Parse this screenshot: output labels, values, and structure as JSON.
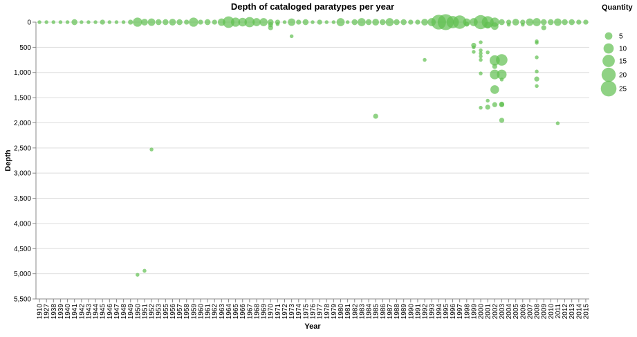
{
  "chart_data": {
    "type": "scatter",
    "title": "Depth of cataloged paratypes per year",
    "xlabel": "Year",
    "ylabel": "Depth",
    "categories": [
      "1910",
      "1927",
      "1938",
      "1939",
      "1940",
      "1941",
      "1942",
      "1943",
      "1944",
      "1945",
      "1946",
      "1947",
      "1948",
      "1949",
      "1950",
      "1951",
      "1952",
      "1953",
      "1955",
      "1956",
      "1957",
      "1958",
      "1959",
      "1960",
      "1961",
      "1962",
      "1963",
      "1964",
      "1965",
      "1966",
      "1967",
      "1968",
      "1969",
      "1970",
      "1971",
      "1972",
      "1973",
      "1974",
      "1975",
      "1976",
      "1977",
      "1978",
      "1979",
      "1980",
      "1981",
      "1982",
      "1983",
      "1984",
      "1985",
      "1986",
      "1987",
      "1988",
      "1989",
      "1990",
      "1991",
      "1992",
      "1993",
      "1994",
      "1995",
      "1996",
      "1997",
      "1998",
      "1999",
      "2000",
      "2001",
      "2002",
      "2003",
      "2004",
      "2005",
      "2006",
      "2007",
      "2008",
      "2009",
      "2010",
      "2011",
      "2012",
      "2013",
      "2014",
      "2015"
    ],
    "y_ticks": [
      0,
      500,
      1000,
      1500,
      2000,
      2500,
      3000,
      3500,
      4000,
      4500,
      5000,
      5500
    ],
    "y_tick_labels": [
      "0",
      "500",
      "1,000",
      "1,500",
      "2,000",
      "2,500",
      "3,000",
      "3,500",
      "4,000",
      "4,500",
      "5,000",
      "5,500"
    ],
    "ylim": [
      0,
      5500
    ],
    "y_reversed": true,
    "grid": true,
    "color": "#5fbf50",
    "legend": {
      "title": "Quantity",
      "placement": "right",
      "sizes": [
        5,
        10,
        15,
        20,
        25
      ],
      "labels": [
        "5",
        "10",
        "15",
        "20",
        "25"
      ]
    },
    "points": [
      {
        "x": "1910",
        "y": 0,
        "q": 1
      },
      {
        "x": "1927",
        "y": 0,
        "q": 1
      },
      {
        "x": "1938",
        "y": 0,
        "q": 1
      },
      {
        "x": "1939",
        "y": 0,
        "q": 1
      },
      {
        "x": "1940",
        "y": 0,
        "q": 1
      },
      {
        "x": "1941",
        "y": 0,
        "q": 3
      },
      {
        "x": "1942",
        "y": 0,
        "q": 1
      },
      {
        "x": "1943",
        "y": 0,
        "q": 1
      },
      {
        "x": "1944",
        "y": 0,
        "q": 1
      },
      {
        "x": "1945",
        "y": 0,
        "q": 2
      },
      {
        "x": "1946",
        "y": 0,
        "q": 1
      },
      {
        "x": "1947",
        "y": 0,
        "q": 1
      },
      {
        "x": "1948",
        "y": 0,
        "q": 1
      },
      {
        "x": "1949",
        "y": 0,
        "q": 2
      },
      {
        "x": "1950",
        "y": 0,
        "q": 8
      },
      {
        "x": "1950",
        "y": 5020,
        "q": 1
      },
      {
        "x": "1951",
        "y": 0,
        "q": 4
      },
      {
        "x": "1951",
        "y": 4940,
        "q": 1
      },
      {
        "x": "1952",
        "y": 0,
        "q": 5
      },
      {
        "x": "1952",
        "y": 2530,
        "q": 1
      },
      {
        "x": "1953",
        "y": 0,
        "q": 3
      },
      {
        "x": "1955",
        "y": 0,
        "q": 3
      },
      {
        "x": "1956",
        "y": 0,
        "q": 4
      },
      {
        "x": "1957",
        "y": 0,
        "q": 3
      },
      {
        "x": "1958",
        "y": 0,
        "q": 2
      },
      {
        "x": "1959",
        "y": 0,
        "q": 8
      },
      {
        "x": "1960",
        "y": 0,
        "q": 2
      },
      {
        "x": "1961",
        "y": 0,
        "q": 3
      },
      {
        "x": "1962",
        "y": 0,
        "q": 2
      },
      {
        "x": "1963",
        "y": 0,
        "q": 5
      },
      {
        "x": "1964",
        "y": 0,
        "q": 13
      },
      {
        "x": "1965",
        "y": 0,
        "q": 8
      },
      {
        "x": "1966",
        "y": 0,
        "q": 7
      },
      {
        "x": "1967",
        "y": 0,
        "q": 10
      },
      {
        "x": "1968",
        "y": 0,
        "q": 6
      },
      {
        "x": "1969",
        "y": 0,
        "q": 6
      },
      {
        "x": "1970",
        "y": 0,
        "q": 3
      },
      {
        "x": "1970",
        "y": 50,
        "q": 2
      },
      {
        "x": "1970",
        "y": 110,
        "q": 2
      },
      {
        "x": "1971",
        "y": 0,
        "q": 2
      },
      {
        "x": "1971",
        "y": 40,
        "q": 1
      },
      {
        "x": "1972",
        "y": 0,
        "q": 1
      },
      {
        "x": "1973",
        "y": 0,
        "q": 5
      },
      {
        "x": "1973",
        "y": 280,
        "q": 1
      },
      {
        "x": "1974",
        "y": 0,
        "q": 2
      },
      {
        "x": "1975",
        "y": 0,
        "q": 3
      },
      {
        "x": "1976",
        "y": 0,
        "q": 1
      },
      {
        "x": "1977",
        "y": 0,
        "q": 2
      },
      {
        "x": "1978",
        "y": 0,
        "q": 1
      },
      {
        "x": "1979",
        "y": 0,
        "q": 1
      },
      {
        "x": "1980",
        "y": 0,
        "q": 6
      },
      {
        "x": "1981",
        "y": 0,
        "q": 1
      },
      {
        "x": "1982",
        "y": 0,
        "q": 3
      },
      {
        "x": "1983",
        "y": 0,
        "q": 6
      },
      {
        "x": "1984",
        "y": 0,
        "q": 3
      },
      {
        "x": "1985",
        "y": 0,
        "q": 4
      },
      {
        "x": "1985",
        "y": 1870,
        "q": 2
      },
      {
        "x": "1986",
        "y": 0,
        "q": 3
      },
      {
        "x": "1987",
        "y": 0,
        "q": 6
      },
      {
        "x": "1988",
        "y": 0,
        "q": 3
      },
      {
        "x": "1989",
        "y": 0,
        "q": 3
      },
      {
        "x": "1990",
        "y": 0,
        "q": 2
      },
      {
        "x": "1991",
        "y": 0,
        "q": 2
      },
      {
        "x": "1992",
        "y": 0,
        "q": 4
      },
      {
        "x": "1992",
        "y": 750,
        "q": 1
      },
      {
        "x": "1993",
        "y": 0,
        "q": 6
      },
      {
        "x": "1994",
        "y": 0,
        "q": 22
      },
      {
        "x": "1995",
        "y": 0,
        "q": 26
      },
      {
        "x": "1996",
        "y": 0,
        "q": 15
      },
      {
        "x": "1997",
        "y": 0,
        "q": 18
      },
      {
        "x": "1998",
        "y": 0,
        "q": 5
      },
      {
        "x": "1998",
        "y": 40,
        "q": 2
      },
      {
        "x": "1999",
        "y": 0,
        "q": 6
      },
      {
        "x": "1999",
        "y": 460,
        "q": 2
      },
      {
        "x": "1999",
        "y": 500,
        "q": 1
      },
      {
        "x": "1999",
        "y": 590,
        "q": 1
      },
      {
        "x": "2000",
        "y": 0,
        "q": 20
      },
      {
        "x": "2000",
        "y": 400,
        "q": 1
      },
      {
        "x": "2000",
        "y": 560,
        "q": 1
      },
      {
        "x": "2000",
        "y": 620,
        "q": 1
      },
      {
        "x": "2000",
        "y": 680,
        "q": 1
      },
      {
        "x": "2000",
        "y": 750,
        "q": 1
      },
      {
        "x": "2000",
        "y": 1020,
        "q": 1
      },
      {
        "x": "2000",
        "y": 1700,
        "q": 1
      },
      {
        "x": "2001",
        "y": 0,
        "q": 14
      },
      {
        "x": "2001",
        "y": 60,
        "q": 4
      },
      {
        "x": "2001",
        "y": 600,
        "q": 1
      },
      {
        "x": "2001",
        "y": 1560,
        "q": 1
      },
      {
        "x": "2001",
        "y": 1690,
        "q": 2
      },
      {
        "x": "2002",
        "y": 0,
        "q": 8
      },
      {
        "x": "2002",
        "y": 80,
        "q": 5
      },
      {
        "x": "2002",
        "y": 760,
        "q": 10
      },
      {
        "x": "2002",
        "y": 880,
        "q": 2
      },
      {
        "x": "2002",
        "y": 1040,
        "q": 9
      },
      {
        "x": "2002",
        "y": 1340,
        "q": 7
      },
      {
        "x": "2002",
        "y": 1640,
        "q": 2
      },
      {
        "x": "2003",
        "y": 0,
        "q": 3
      },
      {
        "x": "2003",
        "y": 750,
        "q": 13
      },
      {
        "x": "2003",
        "y": 1040,
        "q": 9
      },
      {
        "x": "2003",
        "y": 1140,
        "q": 1
      },
      {
        "x": "2003",
        "y": 1630,
        "q": 2
      },
      {
        "x": "2003",
        "y": 1640,
        "q": 2
      },
      {
        "x": "2003",
        "y": 1950,
        "q": 2
      },
      {
        "x": "2004",
        "y": 0,
        "q": 2
      },
      {
        "x": "2004",
        "y": 50,
        "q": 1
      },
      {
        "x": "2005",
        "y": 0,
        "q": 4
      },
      {
        "x": "2006",
        "y": 0,
        "q": 2
      },
      {
        "x": "2006",
        "y": 50,
        "q": 1
      },
      {
        "x": "2007",
        "y": 0,
        "q": 5
      },
      {
        "x": "2008",
        "y": 0,
        "q": 6
      },
      {
        "x": "2008",
        "y": 380,
        "q": 1
      },
      {
        "x": "2008",
        "y": 410,
        "q": 1
      },
      {
        "x": "2008",
        "y": 700,
        "q": 1
      },
      {
        "x": "2008",
        "y": 980,
        "q": 1
      },
      {
        "x": "2008",
        "y": 1130,
        "q": 2
      },
      {
        "x": "2008",
        "y": 1270,
        "q": 1
      },
      {
        "x": "2009",
        "y": 0,
        "q": 3
      },
      {
        "x": "2009",
        "y": 110,
        "q": 2
      },
      {
        "x": "2010",
        "y": 0,
        "q": 3
      },
      {
        "x": "2011",
        "y": 0,
        "q": 5
      },
      {
        "x": "2011",
        "y": 2010,
        "q": 1
      },
      {
        "x": "2012",
        "y": 0,
        "q": 3
      },
      {
        "x": "2013",
        "y": 0,
        "q": 3
      },
      {
        "x": "2014",
        "y": 0,
        "q": 2
      },
      {
        "x": "2015",
        "y": 0,
        "q": 2
      }
    ]
  }
}
